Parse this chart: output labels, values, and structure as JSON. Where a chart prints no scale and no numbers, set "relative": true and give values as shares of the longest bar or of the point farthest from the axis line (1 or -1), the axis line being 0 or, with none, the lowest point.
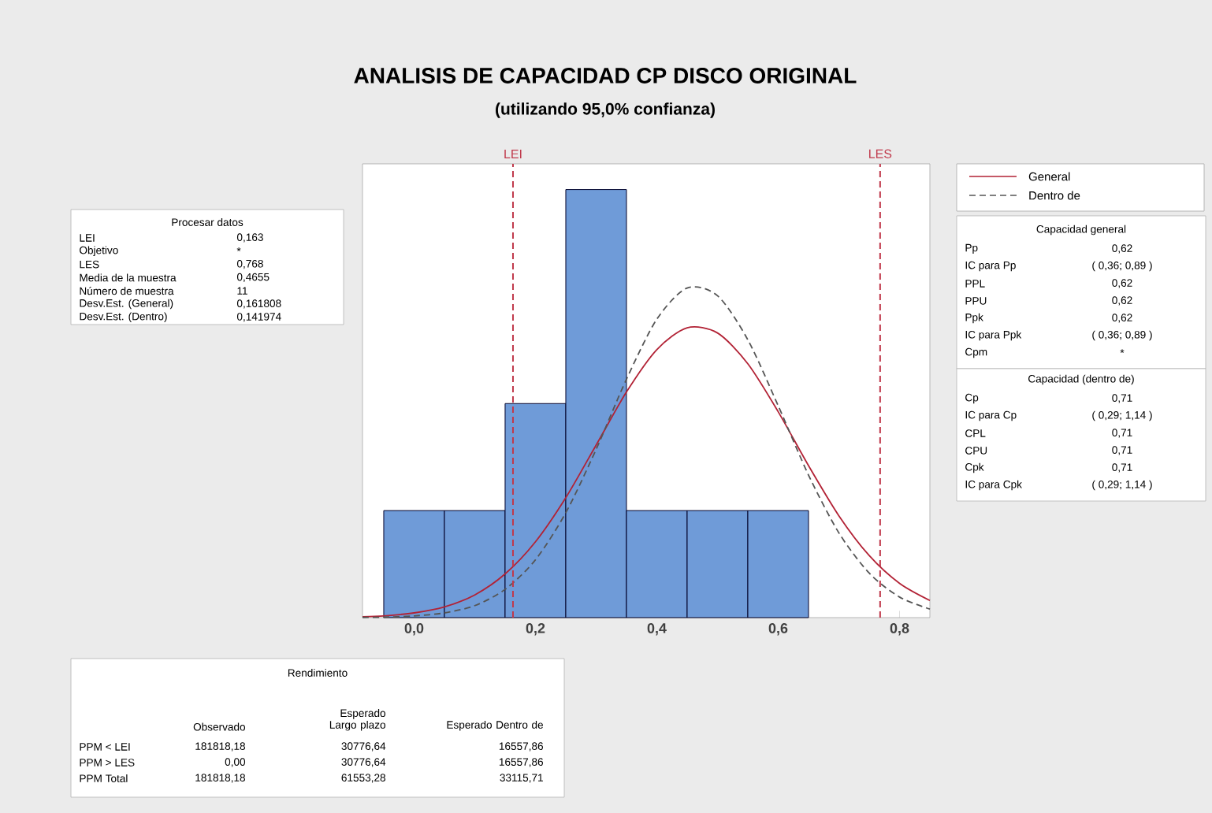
{
  "chart_data": [
    {
      "type": "histogram",
      "title": "ANALISIS DE CAPACIDAD CP DISCO ORIGINAL",
      "subtitle": "(utilizando 95,0% confianza)",
      "relative": true,
      "tick_labels": "x",
      "legend": "top right",
      "bins": [
        -0.05,
        0.05,
        0.15,
        0.25,
        0.35,
        0.45,
        0.55,
        0.65
      ],
      "values": [
        0.25,
        0.25,
        0.5,
        1,
        0.25,
        0.25,
        0.25
      ],
      "color": "#6f9bd8",
      "xlim": [
        -0.085,
        0.85
      ],
      "xticks": [
        {
          "value": 0,
          "label": "0,0"
        },
        {
          "value": 0.2,
          "label": "0,2"
        },
        {
          "value": 0.4,
          "label": "0,4"
        },
        {
          "value": 0.6,
          "label": "0,6"
        },
        {
          "value": 0.8,
          "label": "0,8"
        }
      ],
      "ref_lines": [
        {
          "axis": "x",
          "value": 0.163,
          "label": "LEI",
          "color": "#c0394b",
          "line_style": "dashed"
        },
        {
          "axis": "x",
          "value": 0.768,
          "label": "LES",
          "color": "#c0394b",
          "line_style": "dashed"
        }
      ],
      "series": [
        {
          "type": "line",
          "name": "General",
          "color": "#b22235",
          "line_style": "solid",
          "x": [
            -0.085,
            -0.05,
            0,
            0.05,
            0.1,
            0.15,
            0.2,
            0.25,
            0.3,
            0.35,
            0.4,
            0.45,
            0.5,
            0.55,
            0.6,
            0.65,
            0.7,
            0.75,
            0.8,
            0.85
          ],
          "values": [
            0.002,
            0.004,
            0.011,
            0.025,
            0.053,
            0.102,
            0.177,
            0.28,
            0.403,
            0.527,
            0.626,
            0.677,
            0.665,
            0.593,
            0.481,
            0.355,
            0.238,
            0.145,
            0.08,
            0.04
          ]
        },
        {
          "type": "line",
          "name": "Dentro de",
          "color": "#555555",
          "line_style": "dashed",
          "x": [
            -0.085,
            -0.05,
            0,
            0.05,
            0.1,
            0.15,
            0.2,
            0.25,
            0.3,
            0.35,
            0.4,
            0.45,
            0.5,
            0.55,
            0.6,
            0.65,
            0.7,
            0.75,
            0.8,
            0.85
          ],
          "values": [
            0.0004,
            0.001,
            0.004,
            0.011,
            0.028,
            0.066,
            0.135,
            0.245,
            0.393,
            0.557,
            0.697,
            0.77,
            0.752,
            0.649,
            0.495,
            0.333,
            0.198,
            0.104,
            0.048,
            0.02
          ]
        }
      ]
    },
    {
      "type": "other",
      "title": "Procesar datos",
      "annotations": [
        "LEI",
        "0,163",
        "Objetivo",
        "*",
        "LES",
        "0,768",
        "Media de la muestra",
        "0,4655",
        "Número de muestra",
        "11",
        "Desv.Est. (General)",
        "0,161808",
        "Desv.Est. (Dentro)",
        "0,141974"
      ]
    },
    {
      "type": "other",
      "title": "Capacidad general",
      "annotations": [
        "Pp",
        "0,62",
        "IC para Pp",
        "( 0,36; 0,89 )",
        "PPL",
        "0,62",
        "PPU",
        "0,62",
        "Ppk",
        "0,62",
        "IC para Ppk",
        "( 0,36; 0,89 )",
        "Cpm",
        "*"
      ]
    },
    {
      "type": "other",
      "title": "Capacidad (dentro de)",
      "annotations": [
        "Cp",
        "0,71",
        "IC para Cp",
        "( 0,29; 1,14 )",
        "CPL",
        "0,71",
        "CPU",
        "0,71",
        "Cpk",
        "0,71",
        "IC para Cpk",
        "( 0,29; 1,14 )"
      ]
    },
    {
      "type": "other",
      "title": "Rendimiento",
      "annotations": [
        "Observado",
        "Esperado Largo plazo",
        "Esperado Dentro de",
        "PPM < LEI",
        "181818,18",
        "30776,64",
        "16557,86",
        "PPM > LES",
        "0,00",
        "30776,64",
        "16557,86",
        "PPM Total",
        "181818,18",
        "61553,28",
        "33115,71"
      ]
    }
  ]
}
